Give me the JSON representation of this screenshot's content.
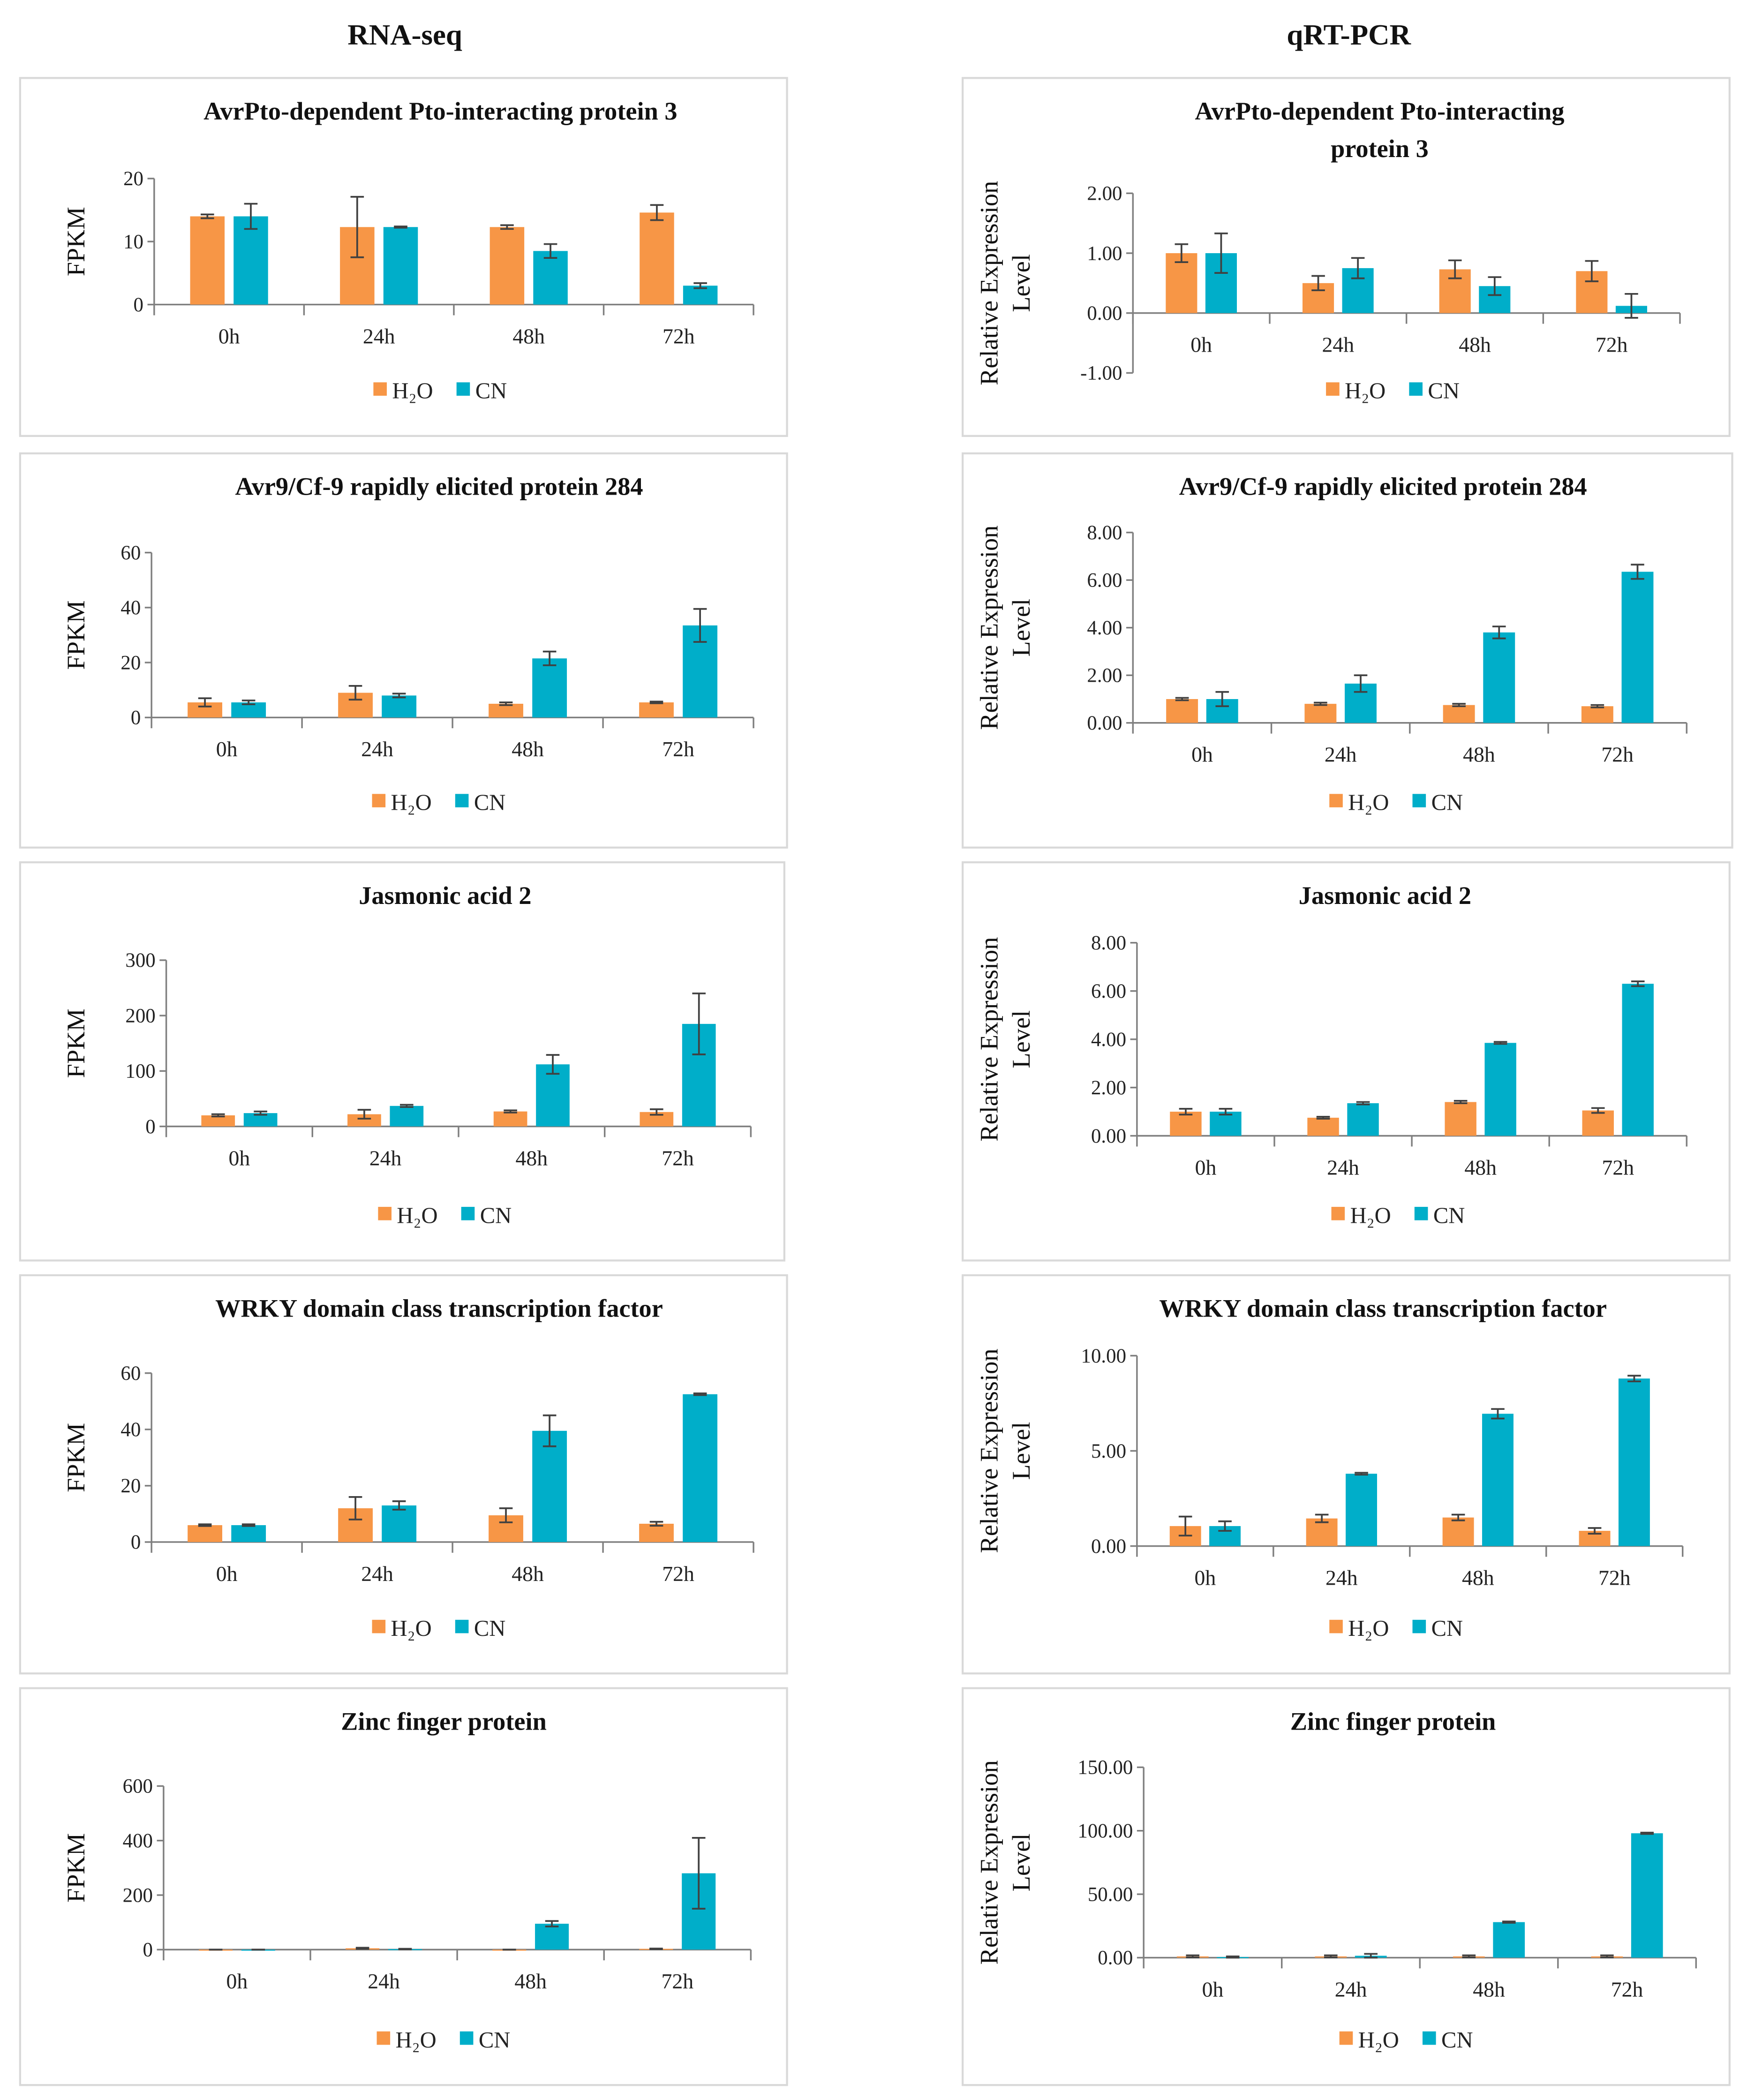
{
  "column_titles": [
    "RNA-seq",
    "qRT-PCR"
  ],
  "colors": {
    "h2o": "#f79646",
    "cn": "#00aec9"
  },
  "legend": [
    "H₂O",
    "CN"
  ],
  "categories": [
    "0h",
    "24h",
    "48h",
    "72h"
  ],
  "chart_data": [
    {
      "type": "bar",
      "title_lines": [
        "AvrPto-dependent Pto-interacting protein 3"
      ],
      "ylabel_lines": [
        "FPKM"
      ],
      "ylim": [
        0,
        20
      ],
      "yticks": [
        0,
        10,
        20
      ],
      "ytick_labels": [
        "0",
        "10",
        "20"
      ],
      "series": [
        {
          "name": "H₂O",
          "values": [
            14,
            12.3,
            12.3,
            14.6
          ],
          "errors": [
            0.3,
            4.8,
            0.3,
            1.2
          ]
        },
        {
          "name": "CN",
          "values": [
            14,
            12.3,
            8.5,
            3
          ],
          "errors": [
            2,
            0.1,
            1.1,
            0.4
          ]
        }
      ]
    },
    {
      "type": "bar",
      "title_lines": [
        "AvrPto-dependent Pto-interacting",
        "protein 3"
      ],
      "ylabel_lines": [
        "Relative Expression",
        "Level"
      ],
      "ylim": [
        -1,
        2
      ],
      "yticks": [
        -1,
        0,
        1,
        2
      ],
      "ytick_labels": [
        "-1.00",
        "0.00",
        "1.00",
        "2.00"
      ],
      "series": [
        {
          "name": "H₂O",
          "values": [
            1,
            0.5,
            0.73,
            0.7
          ],
          "errors": [
            0.15,
            0.12,
            0.15,
            0.17
          ]
        },
        {
          "name": "CN",
          "values": [
            1,
            0.75,
            0.45,
            0.12
          ],
          "errors": [
            0.33,
            0.17,
            0.15,
            0.2
          ]
        }
      ]
    },
    {
      "type": "bar",
      "title_lines": [
        "Avr9/Cf-9 rapidly elicited protein 284"
      ],
      "ylabel_lines": [
        "FPKM"
      ],
      "ylim": [
        0,
        60
      ],
      "yticks": [
        0,
        20,
        40,
        60
      ],
      "ytick_labels": [
        "0",
        "20",
        "40",
        "60"
      ],
      "series": [
        {
          "name": "H₂O",
          "values": [
            5.5,
            9,
            5,
            5.5
          ],
          "errors": [
            1.5,
            2.5,
            0.5,
            0.3
          ]
        },
        {
          "name": "CN",
          "values": [
            5.5,
            8,
            21.5,
            33.5
          ],
          "errors": [
            0.7,
            0.7,
            2.5,
            6
          ]
        }
      ]
    },
    {
      "type": "bar",
      "title_lines": [
        "Avr9/Cf-9 rapidly elicited protein 284"
      ],
      "ylabel_lines": [
        "Relative Expression",
        "Level"
      ],
      "ylim": [
        0,
        8
      ],
      "yticks": [
        0,
        2,
        4,
        6,
        8
      ],
      "ytick_labels": [
        "0.00",
        "2.00",
        "4.00",
        "6.00",
        "8.00"
      ],
      "series": [
        {
          "name": "H₂O",
          "values": [
            1,
            0.8,
            0.75,
            0.7
          ],
          "errors": [
            0.05,
            0.05,
            0.05,
            0.05
          ]
        },
        {
          "name": "CN",
          "values": [
            1,
            1.65,
            3.8,
            6.35
          ],
          "errors": [
            0.3,
            0.35,
            0.25,
            0.3
          ]
        }
      ]
    },
    {
      "type": "bar",
      "title_lines": [
        "Jasmonic acid 2"
      ],
      "ylabel_lines": [
        "FPKM"
      ],
      "ylim": [
        0,
        300
      ],
      "yticks": [
        0,
        100,
        200,
        300
      ],
      "ytick_labels": [
        "0",
        "100",
        "200",
        "300"
      ],
      "series": [
        {
          "name": "H₂O",
          "values": [
            20,
            22,
            27,
            26
          ],
          "errors": [
            2,
            8,
            2,
            5
          ]
        },
        {
          "name": "CN",
          "values": [
            24,
            37,
            112,
            185
          ],
          "errors": [
            3,
            2,
            17,
            55
          ]
        }
      ]
    },
    {
      "type": "bar",
      "title_lines": [
        "Jasmonic acid 2"
      ],
      "ylabel_lines": [
        "Relative Expression",
        "Level"
      ],
      "ylim": [
        0,
        8
      ],
      "yticks": [
        0,
        2,
        4,
        6,
        8
      ],
      "ytick_labels": [
        "0.00",
        "2.00",
        "4.00",
        "6.00",
        "8.00"
      ],
      "series": [
        {
          "name": "H₂O",
          "values": [
            1,
            0.75,
            1.4,
            1.05
          ],
          "errors": [
            0.12,
            0.04,
            0.05,
            0.1
          ]
        },
        {
          "name": "CN",
          "values": [
            1,
            1.35,
            3.85,
            6.3
          ],
          "errors": [
            0.12,
            0.05,
            0.04,
            0.1
          ]
        }
      ]
    },
    {
      "type": "bar",
      "title_lines": [
        "WRKY domain class transcription factor"
      ],
      "ylabel_lines": [
        "FPKM"
      ],
      "ylim": [
        0,
        60
      ],
      "yticks": [
        0,
        20,
        40,
        60
      ],
      "ytick_labels": [
        "0",
        "20",
        "40",
        "60"
      ],
      "series": [
        {
          "name": "H₂O",
          "values": [
            6,
            12,
            9.5,
            6.5
          ],
          "errors": [
            0.3,
            4,
            2.5,
            0.7
          ]
        },
        {
          "name": "CN",
          "values": [
            6,
            13,
            39.5,
            52.5
          ],
          "errors": [
            0.3,
            1.5,
            5.5,
            0.3
          ]
        }
      ]
    },
    {
      "type": "bar",
      "title_lines": [
        "WRKY domain class transcription  factor"
      ],
      "ylabel_lines": [
        "Relative Expression",
        "Level"
      ],
      "ylim": [
        0,
        10
      ],
      "yticks": [
        0,
        5,
        10
      ],
      "ytick_labels": [
        "0.00",
        "5.00",
        "10.00"
      ],
      "series": [
        {
          "name": "H₂O",
          "values": [
            1.05,
            1.45,
            1.5,
            0.8
          ],
          "errors": [
            0.5,
            0.2,
            0.15,
            0.15
          ]
        },
        {
          "name": "CN",
          "values": [
            1.05,
            3.8,
            6.95,
            8.8
          ],
          "errors": [
            0.25,
            0.05,
            0.25,
            0.15
          ]
        }
      ]
    },
    {
      "type": "bar",
      "title_lines": [
        "Zinc finger protein"
      ],
      "ylabel_lines": [
        "FPKM"
      ],
      "ylim": [
        0,
        600
      ],
      "yticks": [
        0,
        200,
        400,
        600
      ],
      "ytick_labels": [
        "0",
        "200",
        "400",
        "600"
      ],
      "series": [
        {
          "name": "H₂O",
          "values": [
            0,
            5,
            0,
            3
          ],
          "errors": [
            0,
            2,
            0,
            1
          ]
        },
        {
          "name": "CN",
          "values": [
            0,
            2,
            95,
            280
          ],
          "errors": [
            0,
            1,
            10,
            130
          ]
        }
      ]
    },
    {
      "type": "bar",
      "title_lines": [
        "Zinc finger protein"
      ],
      "ylabel_lines": [
        "Relative Expression",
        "Level"
      ],
      "ylim": [
        0,
        150
      ],
      "yticks": [
        0,
        50,
        100,
        150
      ],
      "ytick_labels": [
        "0.00",
        "50.00",
        "100.00",
        "150.00"
      ],
      "series": [
        {
          "name": "H₂O",
          "values": [
            1,
            1,
            1,
            1
          ],
          "errors": [
            0.8,
            0.8,
            0.8,
            0.8
          ]
        },
        {
          "name": "CN",
          "values": [
            0.5,
            1.5,
            28,
            98
          ],
          "errors": [
            0.5,
            1.5,
            0.5,
            0.5
          ]
        }
      ]
    }
  ]
}
